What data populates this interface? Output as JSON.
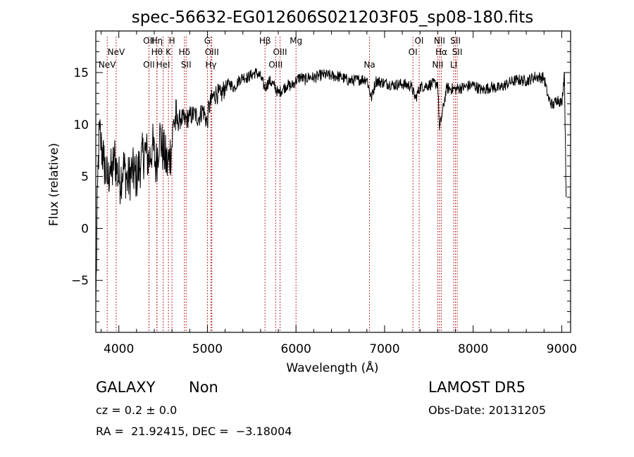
{
  "chart_data": {
    "type": "line",
    "title": "spec-56632-EG012606S021203F05_sp08-180.fits",
    "xlabel": "Wavelength (Å)",
    "ylabel": "Flux (relative)",
    "xlim": [
      3740,
      9100
    ],
    "ylim": [
      -10,
      19
    ],
    "xticks": [
      {
        "value": 4000,
        "label": "4000"
      },
      {
        "value": 5000,
        "label": "5000"
      },
      {
        "value": 6000,
        "label": "6000"
      },
      {
        "value": 7000,
        "label": "7000"
      },
      {
        "value": 8000,
        "label": "8000"
      },
      {
        "value": 9000,
        "label": "9000"
      }
    ],
    "yticks": [
      {
        "value": -5,
        "label": "−5"
      },
      {
        "value": 0,
        "label": "0"
      },
      {
        "value": 5,
        "label": "5"
      },
      {
        "value": 10,
        "label": "10"
      },
      {
        "value": 15,
        "label": "15"
      }
    ],
    "grid": false,
    "line_color": "#000000",
    "marker_color": "#c03030",
    "spectrum": {
      "x": [
        3740,
        3760,
        3780,
        3800,
        3830,
        3860,
        3880,
        3900,
        3920,
        3950,
        3980,
        4010,
        4050,
        4100,
        4150,
        4200,
        4250,
        4300,
        4340,
        4380,
        4420,
        4460,
        4500,
        4550,
        4600,
        4620,
        4660,
        4700,
        4750,
        4800,
        4861,
        4900,
        4950,
        5000,
        5007,
        5050,
        5100,
        5150,
        5200,
        5250,
        5300,
        5350,
        5400,
        5450,
        5500,
        5550,
        5600,
        5650,
        5700,
        5750,
        5800,
        5850,
        5900,
        5950,
        6000,
        6050,
        6100,
        6150,
        6200,
        6300,
        6400,
        6500,
        6600,
        6700,
        6800,
        6850,
        6900,
        7000,
        7100,
        7200,
        7300,
        7350,
        7400,
        7500,
        7600,
        7620,
        7700,
        7800,
        7900,
        8000,
        8100,
        8200,
        8300,
        8400,
        8500,
        8600,
        8700,
        8800,
        8850,
        8900,
        8950,
        9000,
        9030,
        9050
      ],
      "y": [
        -7.5,
        4.0,
        9.5,
        8.0,
        6.5,
        5.0,
        4.5,
        6.0,
        5.0,
        7.0,
        5.5,
        4.5,
        6.0,
        4.5,
        5.5,
        5.0,
        6.5,
        7.5,
        6.5,
        8.0,
        6.0,
        9.0,
        7.5,
        6.0,
        8.0,
        10.5,
        10.2,
        10.6,
        10.4,
        10.8,
        11.0,
        10.6,
        11.5,
        10.0,
        11.2,
        12.5,
        13.0,
        12.8,
        13.6,
        14.0,
        13.5,
        14.2,
        14.6,
        14.5,
        14.8,
        15.0,
        14.6,
        13.5,
        14.2,
        13.8,
        13.0,
        13.4,
        13.8,
        13.7,
        14.2,
        14.6,
        14.3,
        14.6,
        14.5,
        14.8,
        14.7,
        14.6,
        14.2,
        14.3,
        14.4,
        12.5,
        14.2,
        14.0,
        13.8,
        13.9,
        13.7,
        12.5,
        13.6,
        13.8,
        14.0,
        9.5,
        13.5,
        13.4,
        13.6,
        13.8,
        13.3,
        13.6,
        13.5,
        14.0,
        14.3,
        14.2,
        14.6,
        14.5,
        12.5,
        11.8,
        12.5,
        12.0,
        15.0,
        3.0
      ]
    },
    "lines": [
      {
        "label": "NeV",
        "lambda": 3869,
        "row": 3
      },
      {
        "label": "NeV",
        "lambda": 3970,
        "row": 2
      },
      {
        "label": "OII",
        "lambda": 4340,
        "row": 1
      },
      {
        "label": "OII",
        "lambda": 4340,
        "row": 3
      },
      {
        "label": "Hη",
        "lambda": 4430,
        "row": 1
      },
      {
        "label": "Hθ",
        "lambda": 4430,
        "row": 2
      },
      {
        "label": "HeI",
        "lambda": 4500,
        "row": 3
      },
      {
        "label": "K",
        "lambda": 4560,
        "row": 2
      },
      {
        "label": "H",
        "lambda": 4600,
        "row": 1
      },
      {
        "label": "Hδ",
        "lambda": 4740,
        "row": 2
      },
      {
        "label": "SII",
        "lambda": 4760,
        "row": 3
      },
      {
        "label": "G",
        "lambda": 5000,
        "row": 1
      },
      {
        "label": "OIII",
        "lambda": 5050,
        "row": 2
      },
      {
        "label": "Hγ",
        "lambda": 5040,
        "row": 3
      },
      {
        "label": "Hβ",
        "lambda": 5650,
        "row": 1
      },
      {
        "label": "OIII",
        "lambda": 5770,
        "row": 3
      },
      {
        "label": "OIII",
        "lambda": 5820,
        "row": 2
      },
      {
        "label": "Mg",
        "lambda": 6000,
        "row": 1
      },
      {
        "label": "Na",
        "lambda": 6830,
        "row": 3
      },
      {
        "label": "OI",
        "lambda": 7320,
        "row": 2
      },
      {
        "label": "OI",
        "lambda": 7390,
        "row": 1
      },
      {
        "label": "NII",
        "lambda": 7620,
        "row": 1
      },
      {
        "label": "Hα",
        "lambda": 7640,
        "row": 2
      },
      {
        "label": "NII",
        "lambda": 7600,
        "row": 3
      },
      {
        "label": "SII",
        "lambda": 7800,
        "row": 1
      },
      {
        "label": "SII",
        "lambda": 7820,
        "row": 2
      },
      {
        "label": "LI",
        "lambda": 7780,
        "row": 3
      }
    ]
  },
  "info": {
    "object_class": "GALAXY",
    "subclass": "Non",
    "survey": "LAMOST DR5",
    "cz": "cz = 0.2 ± 0.0",
    "obs_date": "Obs-Date: 20131205",
    "radec": "RA =  21.92415, DEC =  −3.18004"
  }
}
